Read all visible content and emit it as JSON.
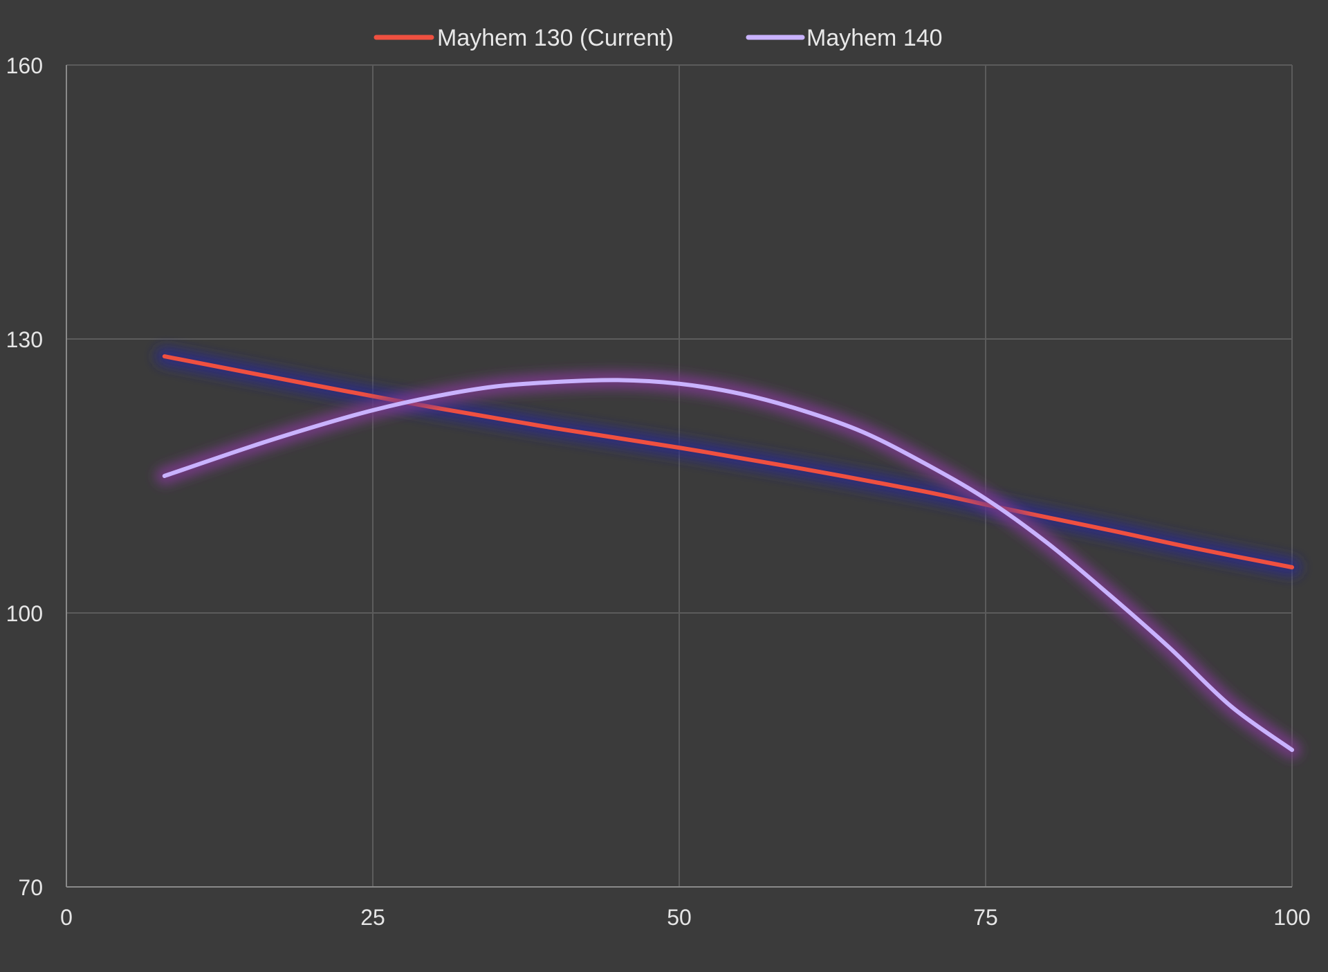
{
  "chart_data": {
    "type": "line",
    "title": "",
    "xlabel": "",
    "ylabel": "",
    "xlim": [
      0,
      100
    ],
    "ylim": [
      70,
      160
    ],
    "x_ticks": [
      "0",
      "25",
      "50",
      "75",
      "100"
    ],
    "y_ticks": [
      "70",
      "100",
      "130",
      "160"
    ],
    "grid": true,
    "legend_position": "top-center",
    "series": [
      {
        "name": "Mayhem 130 (Current)",
        "color": "#ef5040",
        "glow": "#2a2a8c",
        "x": [
          8,
          20,
          30,
          40,
          50,
          60,
          70,
          77,
          85,
          92,
          100
        ],
        "y": [
          128.1,
          125.0,
          122.5,
          120.2,
          118.1,
          115.8,
          113.3,
          111.3,
          109.1,
          107.1,
          105.0
        ]
      },
      {
        "name": "Mayhem 140",
        "color": "#c9b3ff",
        "glow": "#7a3a8a",
        "x": [
          8,
          15,
          20,
          25,
          30,
          35,
          40,
          45,
          50,
          55,
          60,
          65,
          70,
          75,
          80,
          85,
          90,
          95,
          100
        ],
        "y": [
          115.0,
          118.2,
          120.3,
          122.2,
          123.7,
          124.8,
          125.3,
          125.5,
          125.1,
          124.0,
          122.2,
          119.8,
          116.4,
          112.5,
          107.7,
          102.1,
          96.2,
          89.8,
          85.0
        ]
      }
    ]
  }
}
